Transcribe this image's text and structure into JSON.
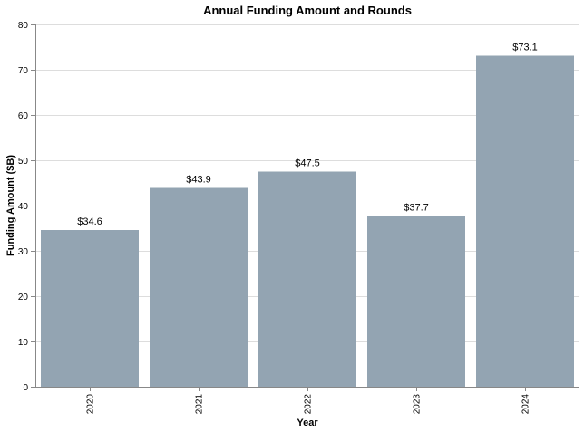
{
  "chart_data": {
    "type": "bar",
    "title": "Annual Funding Amount and Rounds",
    "xlabel": "Year",
    "ylabel": "Funding Amount ($B)",
    "categories": [
      "2020",
      "2021",
      "2022",
      "2023",
      "2024"
    ],
    "values": [
      34.6,
      43.9,
      47.5,
      37.7,
      73.1
    ],
    "data_labels": [
      "$34.6",
      "$43.9",
      "$47.5",
      "$37.7",
      "$73.1"
    ],
    "ylim": [
      0,
      80
    ],
    "yticks": [
      0,
      10,
      20,
      30,
      40,
      50,
      60,
      70,
      80
    ],
    "grid": true,
    "bar_color": "#93a4b2"
  }
}
